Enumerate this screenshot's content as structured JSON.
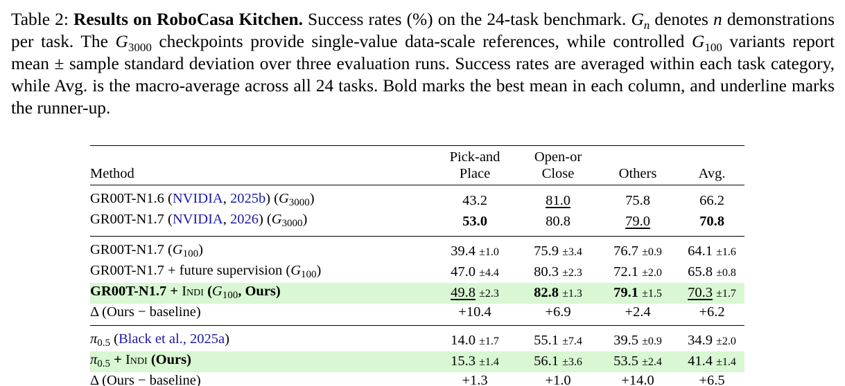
{
  "caption": [
    "Table 2:",
    "Results on RoboCasa Kitchen.",
    " Success rates (%) on the 24-task benchmark. ",
    "G",
    "n",
    " denotes ",
    "n",
    " demonstrations per task. The ",
    "G",
    "3000",
    " checkpoints provide single-value data-scale references, while controlled ",
    "G",
    "100",
    " variants report mean ± sample standard deviation over three evaluation runs. Success rates are averaged within each task category, while Avg. is the macro-average across all 24 tasks. Bold marks the best mean in each column, and underline marks the runner-up."
  ],
  "table": {
    "columns": [
      [
        "Method"
      ],
      [
        "Pick-and",
        "Place"
      ],
      [
        "Open-or",
        "Close"
      ],
      [
        "Others"
      ],
      [
        "Avg."
      ]
    ],
    "groups": [
      {
        "rows": [
          {
            "method": [
              {
                "text": "GR00T-N1.6 ("
              },
              {
                "text": "NVIDIA",
                "style": "link"
              },
              {
                "text": ", "
              },
              {
                "text": "2025b",
                "style": "link"
              },
              {
                "text": ") ("
              },
              {
                "text": "G",
                "style": "math"
              },
              {
                "text": "3000",
                "style": "sub"
              },
              {
                "text": ")"
              }
            ],
            "cells": [
              {
                "mean": "43.2"
              },
              {
                "mean": "81.0",
                "underline": true
              },
              {
                "mean": "75.8"
              },
              {
                "mean": "66.2"
              }
            ]
          },
          {
            "method": [
              {
                "text": "GR00T-N1.7 ("
              },
              {
                "text": "NVIDIA",
                "style": "link"
              },
              {
                "text": ", "
              },
              {
                "text": "2026",
                "style": "link"
              },
              {
                "text": ") ("
              },
              {
                "text": "G",
                "style": "math"
              },
              {
                "text": "3000",
                "style": "sub"
              },
              {
                "text": ")"
              }
            ],
            "cells": [
              {
                "mean": "53.0",
                "bold": true
              },
              {
                "mean": "80.8"
              },
              {
                "mean": "79.0",
                "underline": true
              },
              {
                "mean": "70.8",
                "bold": true
              }
            ]
          }
        ]
      },
      {
        "rows": [
          {
            "method": [
              {
                "text": "GR00T-N1.7 ("
              },
              {
                "text": "G",
                "style": "math"
              },
              {
                "text": "100",
                "style": "sub"
              },
              {
                "text": ")"
              }
            ],
            "cells": [
              {
                "mean": "39.4",
                "std": "±1.0"
              },
              {
                "mean": "75.9",
                "std": "±3.4"
              },
              {
                "mean": "76.7",
                "std": "±0.9"
              },
              {
                "mean": "64.1",
                "std": "±1.6"
              }
            ]
          },
          {
            "method": [
              {
                "text": "GR00T-N1.7 + future supervision ("
              },
              {
                "text": "G",
                "style": "math"
              },
              {
                "text": "100",
                "style": "sub"
              },
              {
                "text": ")"
              }
            ],
            "cells": [
              {
                "mean": "47.0",
                "std": "±4.4"
              },
              {
                "mean": "80.3",
                "std": "±2.3"
              },
              {
                "mean": "72.1",
                "std": "±2.0"
              },
              {
                "mean": "65.8",
                "std": "±0.8"
              }
            ]
          },
          {
            "highlight": true,
            "method": [
              {
                "text": "GR00T-N1.7 + ",
                "style": "bold"
              },
              {
                "text": "Indi",
                "style": "sc"
              },
              {
                "text": " (",
                "style": "bold"
              },
              {
                "text": "G",
                "style": "math"
              },
              {
                "text": "100",
                "style": "sub"
              },
              {
                "text": ", Ours)",
                "style": "bold"
              }
            ],
            "cells": [
              {
                "mean": "49.8",
                "std": "±2.3",
                "underline": true
              },
              {
                "mean": "82.8",
                "std": "±1.3",
                "bold": true
              },
              {
                "mean": "79.1",
                "std": "±1.5",
                "bold": true
              },
              {
                "mean": "70.3",
                "std": "±1.7",
                "underline": true
              }
            ]
          },
          {
            "method": [
              {
                "text": "Δ (Ours − baseline)"
              }
            ],
            "cells": [
              {
                "mean": "+10.4"
              },
              {
                "mean": "+6.9"
              },
              {
                "mean": "+2.4"
              },
              {
                "mean": "+6.2"
              }
            ]
          }
        ]
      },
      {
        "rows": [
          {
            "method": [
              {
                "text": "π",
                "style": "math"
              },
              {
                "text": "0.5",
                "style": "sub"
              },
              {
                "text": " ("
              },
              {
                "text": "Black et al., 2025a",
                "style": "link"
              },
              {
                "text": ")"
              }
            ],
            "cells": [
              {
                "mean": "14.0",
                "std": "±1.7"
              },
              {
                "mean": "55.1",
                "std": "±7.4"
              },
              {
                "mean": "39.5",
                "std": "±0.9"
              },
              {
                "mean": "34.9",
                "std": "±2.0"
              }
            ]
          },
          {
            "highlight": true,
            "method": [
              {
                "text": "π",
                "style": "math"
              },
              {
                "text": "0.5",
                "style": "sub"
              },
              {
                "text": " + ",
                "style": "bold"
              },
              {
                "text": "Indi",
                "style": "sc"
              },
              {
                "text": " (Ours)",
                "style": "bold"
              }
            ],
            "cells": [
              {
                "mean": "15.3",
                "std": "±1.4"
              },
              {
                "mean": "56.1",
                "std": "±3.6"
              },
              {
                "mean": "53.5",
                "std": "±2.4"
              },
              {
                "mean": "41.4",
                "std": "±1.4"
              }
            ]
          },
          {
            "method": [
              {
                "text": "Δ (Ours − baseline)"
              }
            ],
            "cells": [
              {
                "mean": "+1.3"
              },
              {
                "mean": "+1.0"
              },
              {
                "mean": "+14.0"
              },
              {
                "mean": "+6.5"
              }
            ]
          }
        ]
      }
    ]
  }
}
